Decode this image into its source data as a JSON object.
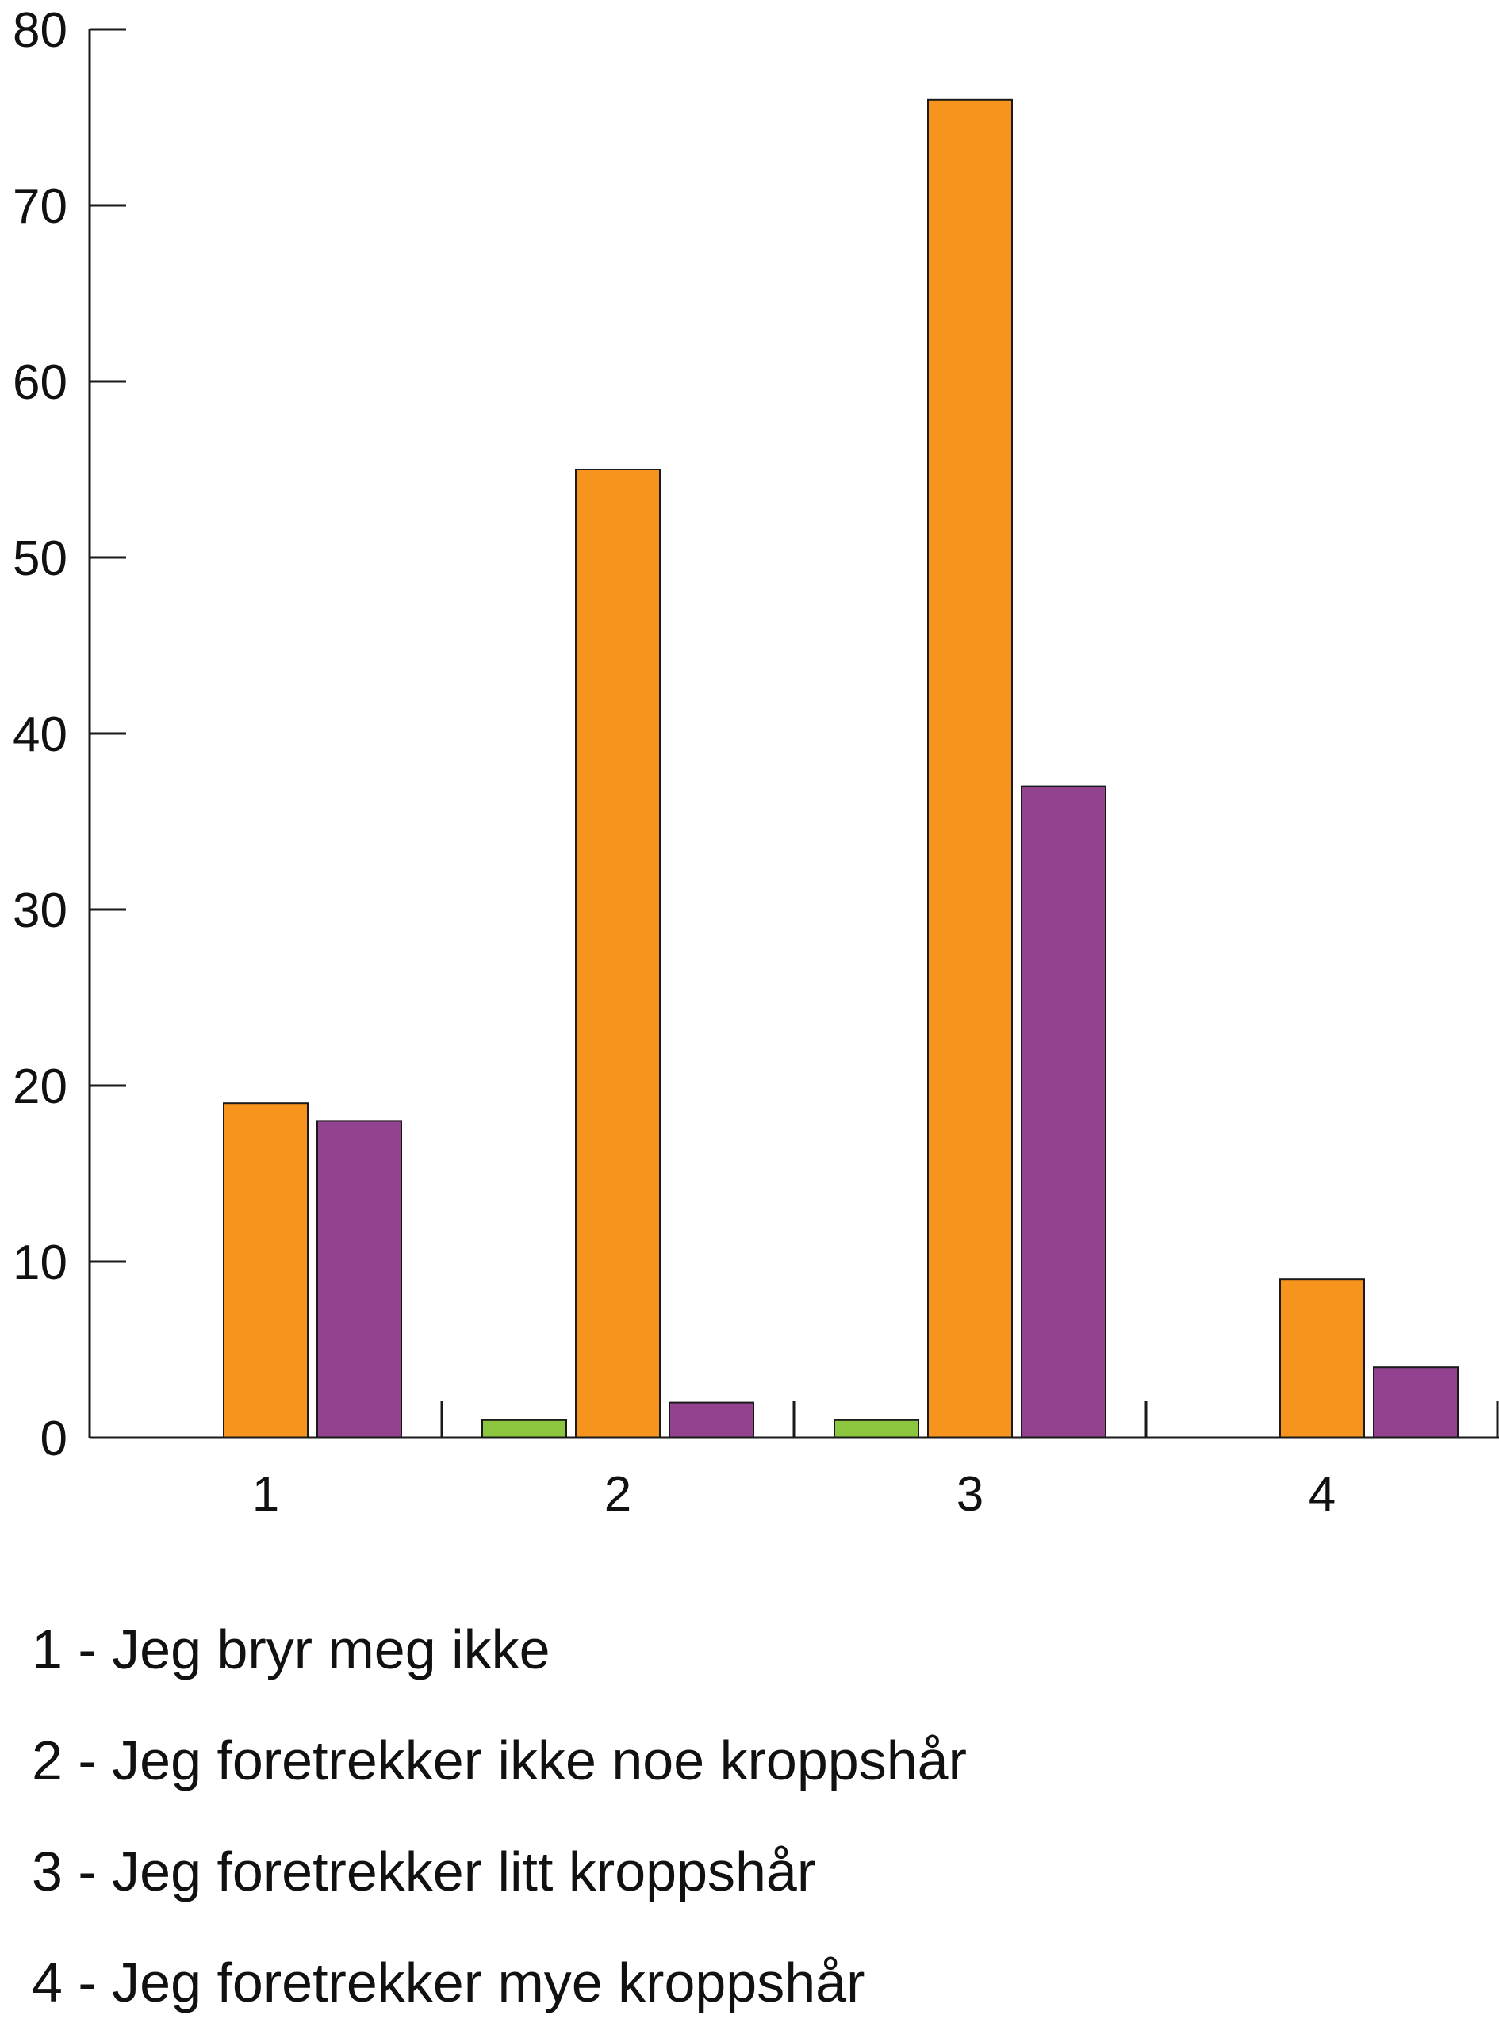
{
  "chart_data": {
    "type": "bar",
    "categories": [
      "1",
      "2",
      "3",
      "4"
    ],
    "series": [
      {
        "color": "#8cc63f",
        "values": [
          0,
          1,
          1,
          0
        ]
      },
      {
        "color": "#f7941d",
        "values": [
          19,
          55,
          76,
          9
        ]
      },
      {
        "color": "#92428f",
        "values": [
          18,
          2,
          37,
          4
        ]
      }
    ],
    "ylim": [
      0,
      80
    ],
    "yticks": [
      "0",
      "10",
      "20",
      "30",
      "40",
      "50",
      "60",
      "70",
      "80"
    ],
    "grid": false,
    "legend_placement": "bottom",
    "legend_items": [
      "1 - Jeg bryr meg ikke",
      "2 - Jeg foretrekker ikke noe kroppshår",
      "3 - Jeg foretrekker litt kroppshår",
      "4 - Jeg foretrekker mye kroppshår"
    ]
  }
}
